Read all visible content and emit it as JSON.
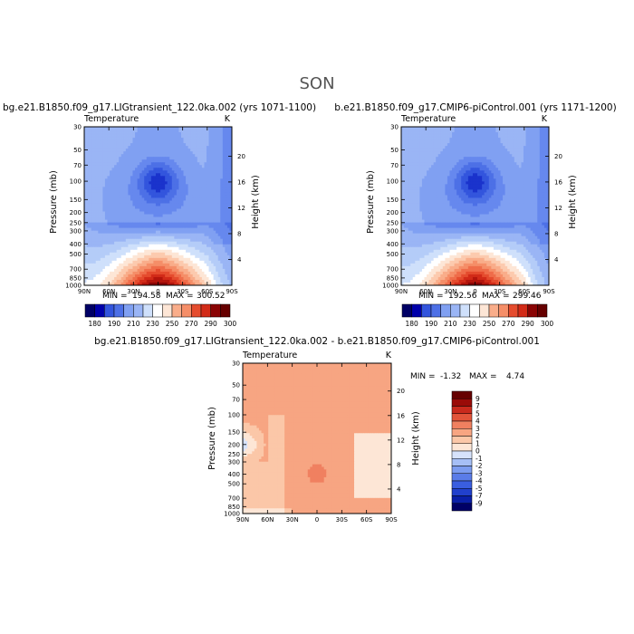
{
  "page": {
    "title": "SON"
  },
  "colors": {
    "palette": [
      "#000066",
      "#0000aa",
      "#1a33cc",
      "#3355dd",
      "#4d70e6",
      "#6688ee",
      "#80a0f2",
      "#9ab5f5",
      "#b4ccf8",
      "#cfe0fb",
      "#ffffff",
      "#fde6d6",
      "#fccaae",
      "#f9ad8a",
      "#f58e68",
      "#ef6d4a",
      "#e54c2e",
      "#d22b18",
      "#b3150c",
      "#8a0404",
      "#660000"
    ],
    "contour_line": "#ffffff"
  },
  "chart_data": [
    {
      "type": "heatmap",
      "title": "bg.e21.B1850.f09_g17.LIGtransient_122.0ka.002 (yrs 1071-1100)",
      "variable_label": "Temperature",
      "units_label": "K",
      "ylabel": "Pressure (mb)",
      "ylabel_right": "Height (km)",
      "x_ticks": [
        "90N",
        "60N",
        "30N",
        "0",
        "30S",
        "60S",
        "90S"
      ],
      "y_ticks": [
        "30",
        "50",
        "70",
        "100",
        "150",
        "200",
        "250",
        "300",
        "400",
        "500",
        "700",
        "850",
        "1000"
      ],
      "height_ticks": [
        "20",
        "16",
        "12",
        "8",
        "4"
      ],
      "stats": {
        "min_label": "MIN =",
        "min": "194.58",
        "max_label": "MAX =",
        "max": "300.52"
      },
      "colorbar": {
        "orientation": "horizontal",
        "labels": [
          "180",
          "190",
          "210",
          "230",
          "250",
          "270",
          "290",
          "300"
        ]
      },
      "field": {
        "kind": "temperature",
        "min": 194.58,
        "max": 300.52,
        "cold_core_pressure": 100,
        "range": [
          175,
          305
        ]
      }
    },
    {
      "type": "heatmap",
      "title": "b.e21.B1850.f09_g17.CMIP6-piControl.001 (yrs 1171-1200)",
      "variable_label": "Temperature",
      "units_label": "K",
      "ylabel": "Pressure (mb)",
      "ylabel_right": "Height (km)",
      "x_ticks": [
        "90N",
        "60N",
        "30N",
        "0",
        "30S",
        "60S",
        "90S"
      ],
      "y_ticks": [
        "30",
        "50",
        "70",
        "100",
        "150",
        "200",
        "250",
        "300",
        "400",
        "500",
        "700",
        "850",
        "1000"
      ],
      "height_ticks": [
        "20",
        "16",
        "12",
        "8",
        "4"
      ],
      "stats": {
        "min_label": "MIN =",
        "min": "192.56",
        "max_label": "MAX =",
        "max": "299.46"
      },
      "colorbar": {
        "orientation": "horizontal",
        "labels": [
          "180",
          "190",
          "210",
          "230",
          "250",
          "270",
          "290",
          "300"
        ]
      },
      "field": {
        "kind": "temperature",
        "min": 192.56,
        "max": 299.46,
        "cold_core_pressure": 100,
        "range": [
          175,
          305
        ]
      }
    },
    {
      "type": "heatmap",
      "title": "bg.e21.B1850.f09_g17.LIGtransient_122.0ka.002 - b.e21.B1850.f09_g17.CMIP6-piControl.001",
      "variable_label": "Temperature",
      "units_label": "K",
      "ylabel": "Pressure (mb)",
      "ylabel_right": "Height (km)",
      "x_ticks": [
        "90N",
        "60N",
        "30N",
        "0",
        "30S",
        "60S",
        "90S"
      ],
      "y_ticks": [
        "30",
        "50",
        "70",
        "100",
        "150",
        "200",
        "250",
        "300",
        "400",
        "500",
        "700",
        "850",
        "1000"
      ],
      "height_ticks": [
        "20",
        "16",
        "12",
        "8",
        "4"
      ],
      "stats": {
        "min_label": "MIN =",
        "min": "-1.32",
        "max_label": "MAX =",
        "max": "4.74"
      },
      "colorbar": {
        "orientation": "vertical",
        "labels": [
          "9",
          "7",
          "5",
          "4",
          "3",
          "2",
          "1",
          "0",
          "-1",
          "-2",
          "-3",
          "-4",
          "-5",
          "-7",
          "-9"
        ]
      },
      "field": {
        "kind": "difference",
        "min": -1.32,
        "max": 4.74,
        "range": [
          -10,
          10
        ]
      }
    }
  ]
}
